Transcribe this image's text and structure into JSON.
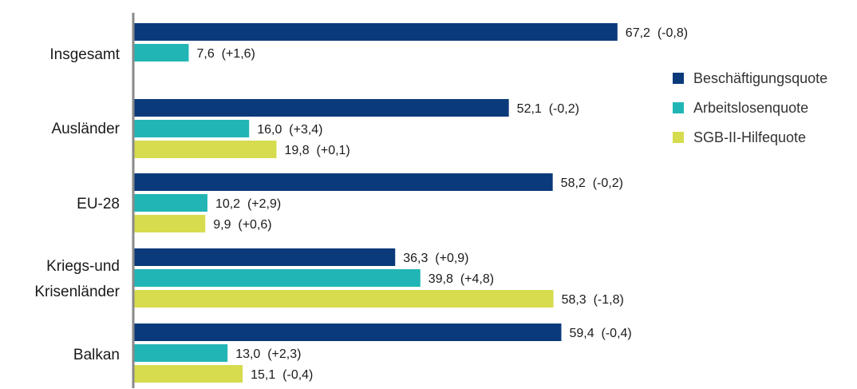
{
  "chart_data": {
    "type": "bar",
    "orientation": "horizontal",
    "categories": [
      [
        "Insgesamt"
      ],
      [
        "Ausländer"
      ],
      [
        "EU-28"
      ],
      [
        "Kriegs-und",
        "Krisenländer"
      ],
      [
        "Balkan"
      ]
    ],
    "series": [
      {
        "name": "Beschäftigungsquote",
        "color": "#0b3a7a",
        "values": [
          67.2,
          52.1,
          58.2,
          36.3,
          59.4
        ],
        "labels": [
          "67,2  (-0,8)",
          "52,1  (-0,2)",
          "58,2  (-0,2)",
          "36,3  (+0,9)",
          "59,4  (-0,4)"
        ]
      },
      {
        "name": "Arbeitslosenquote",
        "color": "#22b5b5",
        "values": [
          7.6,
          16.0,
          10.2,
          39.8,
          13.0
        ],
        "labels": [
          "7,6  (+1,6)",
          "16,0  (+3,4)",
          "10,2  (+2,9)",
          "39,8  (+4,8)",
          "13,0  (+2,3)"
        ]
      },
      {
        "name": "SGB-II-Hilfequote",
        "color": "#d6dc4e",
        "values": [
          null,
          19.8,
          9.9,
          58.3,
          15.1
        ],
        "labels": [
          null,
          "19,8  (+0,1)",
          "9,9  (+0,6)",
          "58,3  (-1,8)",
          "15,1  (-0,4)"
        ]
      }
    ],
    "xlim": [
      0,
      100
    ],
    "grid": false,
    "legend_position": "right"
  }
}
